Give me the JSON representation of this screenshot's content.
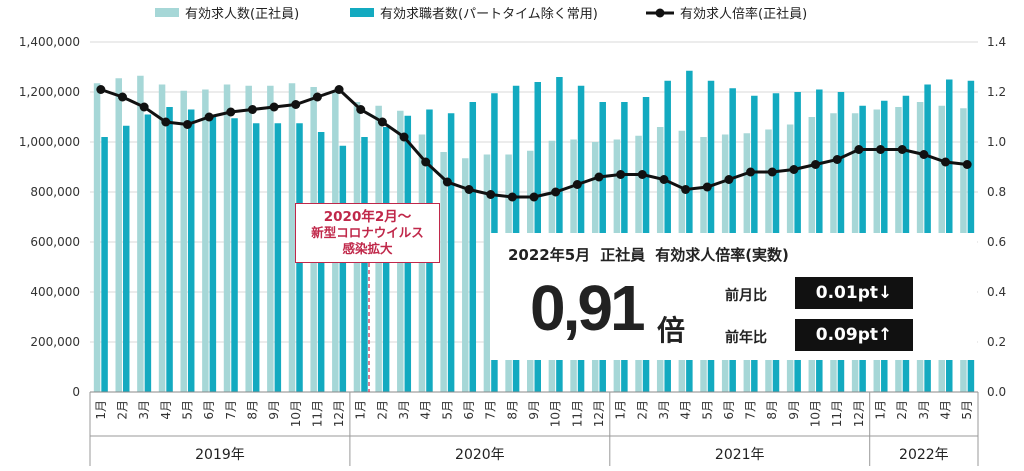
{
  "legend": [
    {
      "label": "有効求人数(正社員)",
      "color": "#a6d7d7",
      "kind": "bar"
    },
    {
      "label": "有効求職者数(パートタイム除く常用)",
      "color": "#13aac0",
      "kind": "bar"
    },
    {
      "label": "有効求人倍率(正社員)",
      "color": "#111111",
      "kind": "line"
    }
  ],
  "annotation": {
    "line1": "2020年2月～",
    "line2": "新型コロナウイルス",
    "line3": "感染拡大"
  },
  "infobox": {
    "title_date": "2022年5月",
    "title_type": "正社員",
    "title_metric": "有効求人倍率(実数)",
    "value": "0,91",
    "unit": "倍",
    "mom_label": "前月比",
    "mom_value": "0.01pt↓",
    "yoy_label": "前年比",
    "yoy_value": "0.09pt↑"
  },
  "chart_data": {
    "type": "bar",
    "title": "",
    "xlabel": "",
    "ylabel": "",
    "ylim": [
      0,
      1400000
    ],
    "y2lim": [
      0,
      1.4
    ],
    "yticks": [
      "0",
      "200,000",
      "400,000",
      "600,000",
      "800,000",
      "1,000,000",
      "1,200,000",
      "1,400,000"
    ],
    "y2ticks": [
      "0.0",
      "0.2",
      "0.4",
      "0.6",
      "0.8",
      "1.0",
      "1.2",
      "1.4"
    ],
    "grid": true,
    "legend_position": "top",
    "years": [
      {
        "label": "2019年",
        "count": 12
      },
      {
        "label": "2020年",
        "count": 12
      },
      {
        "label": "2021年",
        "count": 12
      },
      {
        "label": "2022年",
        "count": 5
      }
    ],
    "categories": [
      "1月",
      "2月",
      "3月",
      "4月",
      "5月",
      "6月",
      "7月",
      "8月",
      "9月",
      "10月",
      "11月",
      "12月",
      "1月",
      "2月",
      "3月",
      "4月",
      "5月",
      "6月",
      "7月",
      "8月",
      "9月",
      "10月",
      "11月",
      "12月",
      "1月",
      "2月",
      "3月",
      "4月",
      "5月",
      "6月",
      "7月",
      "8月",
      "9月",
      "10月",
      "11月",
      "12月",
      "1月",
      "2月",
      "3月",
      "4月",
      "5月"
    ],
    "series": [
      {
        "name": "有効求人数(正社員)",
        "axis": "left",
        "color": "#a6d7d7",
        "values": [
          1235000,
          1255000,
          1265000,
          1230000,
          1205000,
          1210000,
          1230000,
          1225000,
          1225000,
          1235000,
          1220000,
          1205000,
          1160000,
          1145000,
          1125000,
          1030000,
          960000,
          935000,
          950000,
          950000,
          965000,
          1005000,
          1010000,
          1000000,
          1010000,
          1025000,
          1060000,
          1045000,
          1020000,
          1030000,
          1035000,
          1050000,
          1070000,
          1100000,
          1115000,
          1115000,
          1130000,
          1140000,
          1160000,
          1145000,
          1135000
        ]
      },
      {
        "name": "有効求職者数(パートタイム除く常用)",
        "axis": "left",
        "color": "#13aac0",
        "values": [
          1020000,
          1065000,
          1110000,
          1140000,
          1130000,
          1100000,
          1095000,
          1075000,
          1075000,
          1075000,
          1040000,
          985000,
          1020000,
          1060000,
          1105000,
          1130000,
          1115000,
          1160000,
          1195000,
          1225000,
          1240000,
          1260000,
          1225000,
          1160000,
          1160000,
          1180000,
          1245000,
          1285000,
          1245000,
          1215000,
          1185000,
          1195000,
          1200000,
          1210000,
          1200000,
          1145000,
          1165000,
          1185000,
          1230000,
          1250000,
          1245000
        ]
      },
      {
        "name": "有効求人倍率(正社員)",
        "axis": "right",
        "color": "#111111",
        "values": [
          1.21,
          1.18,
          1.14,
          1.08,
          1.07,
          1.1,
          1.12,
          1.13,
          1.14,
          1.15,
          1.18,
          1.21,
          1.13,
          1.08,
          1.02,
          0.92,
          0.84,
          0.81,
          0.79,
          0.78,
          0.78,
          0.8,
          0.83,
          0.86,
          0.87,
          0.87,
          0.85,
          0.81,
          0.82,
          0.85,
          0.88,
          0.88,
          0.89,
          0.91,
          0.93,
          0.97,
          0.97,
          0.97,
          0.95,
          0.92,
          0.91
        ]
      }
    ]
  }
}
